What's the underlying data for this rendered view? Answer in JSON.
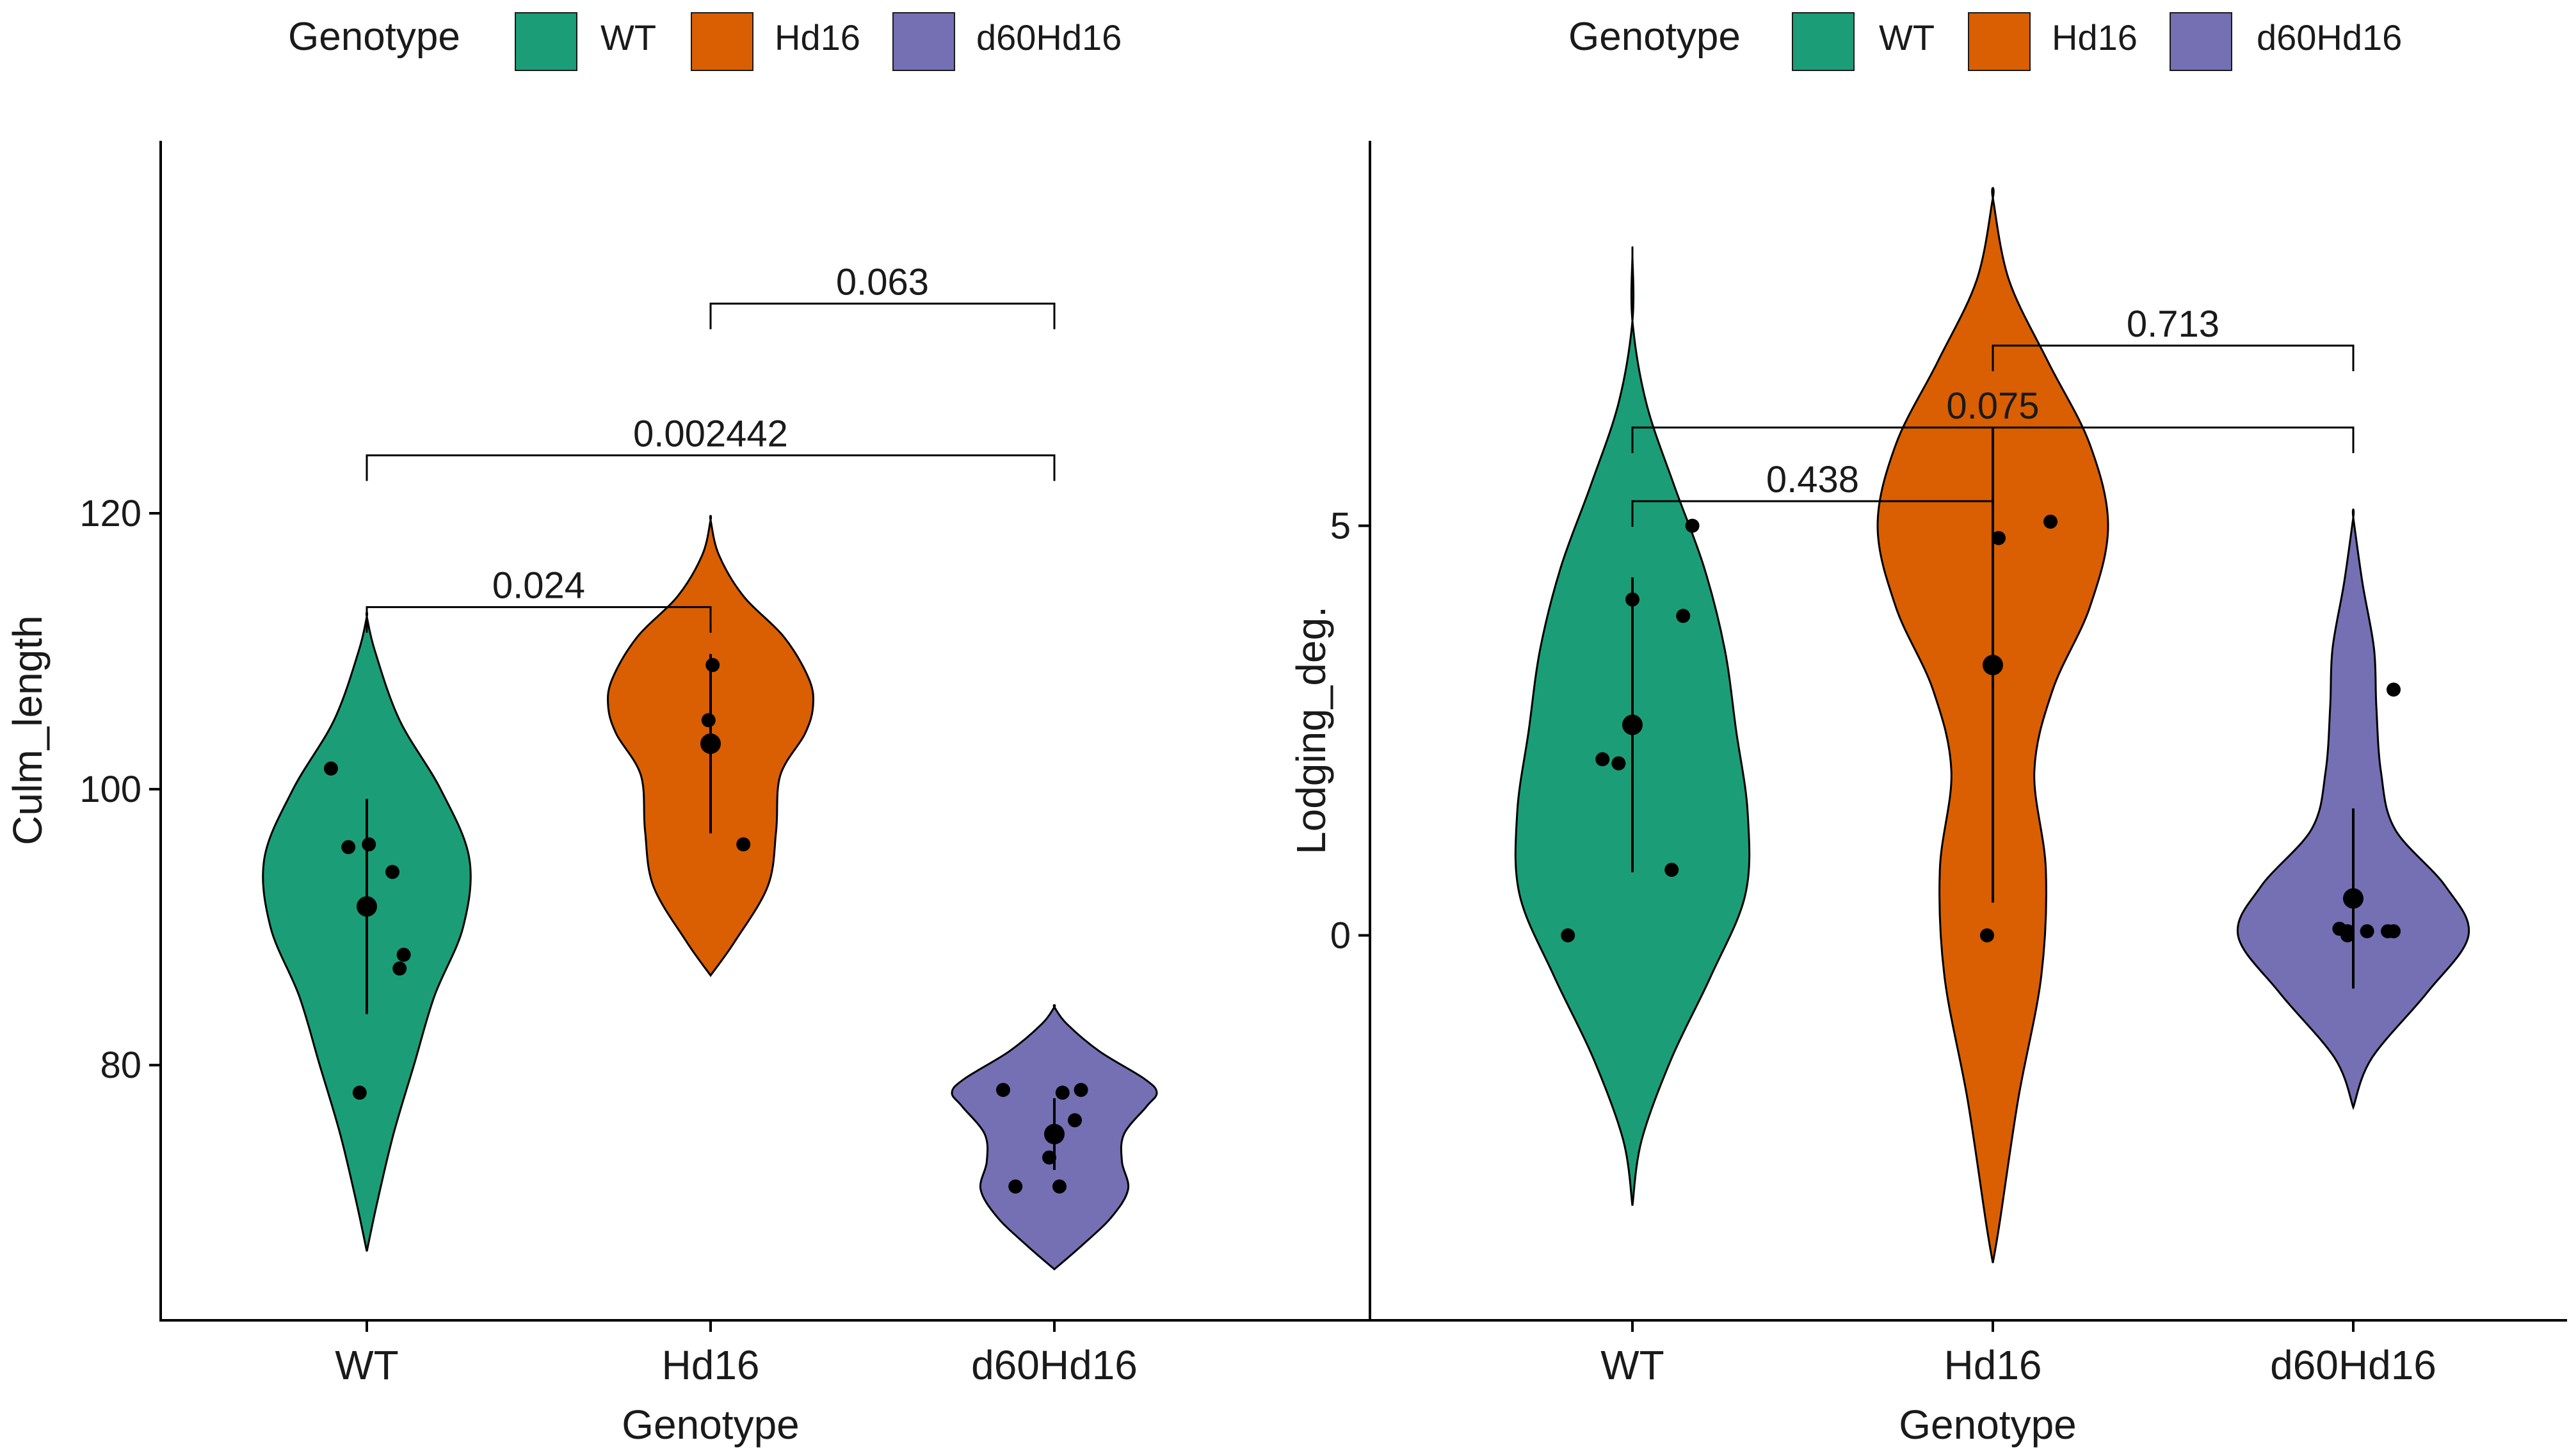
{
  "colors": {
    "WT": "#1b9e77",
    "Hd16": "#d95f02",
    "d60Hd16": "#7570b3",
    "ink": "#000000"
  },
  "chart_data": [
    {
      "type": "violin",
      "legend": {
        "title": "Genotype",
        "entries": [
          "WT",
          "Hd16",
          "d60Hd16"
        ],
        "position": "top"
      },
      "xlabel": "Genotype",
      "ylabel": "Culm_length",
      "categories": [
        "WT",
        "Hd16",
        "d60Hd16"
      ],
      "ylim": [
        61.5,
        147
      ],
      "yticks": [
        80,
        100,
        120
      ],
      "groups": [
        {
          "name": "WT",
          "mean": 91.5,
          "sd": 7.8,
          "points": [
            101.5,
            95.8,
            96.0,
            91.5,
            94.0,
            88.0,
            87.0,
            78.0
          ],
          "jitter": [
            -0.35,
            -0.18,
            0.02,
            0.0,
            0.25,
            0.36,
            0.32,
            -0.07
          ],
          "density": [
            [
              66.5,
              0.0
            ],
            [
              70,
              0.05
            ],
            [
              75,
              0.13
            ],
            [
              80,
              0.23
            ],
            [
              85,
              0.33
            ],
            [
              90,
              0.47
            ],
            [
              95,
              0.5
            ],
            [
              100,
              0.36
            ],
            [
              105,
              0.16
            ],
            [
              110,
              0.04
            ],
            [
              112.5,
              0.0
            ]
          ]
        },
        {
          "name": "Hd16",
          "mean": 103.3,
          "sd": 6.5,
          "points": [
            109.0,
            105.0,
            103.3,
            96.0
          ],
          "jitter": [
            0.02,
            -0.02,
            0.0,
            0.32
          ],
          "density": [
            [
              86.5,
              0.0
            ],
            [
              89,
              0.12
            ],
            [
              93,
              0.28
            ],
            [
              97,
              0.32
            ],
            [
              101,
              0.34
            ],
            [
              104,
              0.46
            ],
            [
              106,
              0.5
            ],
            [
              108,
              0.48
            ],
            [
              111,
              0.36
            ],
            [
              114,
              0.16
            ],
            [
              117,
              0.04
            ],
            [
              119.5,
              0.0
            ]
          ]
        },
        {
          "name": "d60Hd16",
          "mean": 75.0,
          "sd": 2.6,
          "points": [
            78.2,
            78.0,
            78.2,
            76.0,
            75.0,
            73.3,
            71.2,
            71.2
          ],
          "jitter": [
            -0.5,
            0.08,
            0.26,
            0.2,
            -0.01,
            -0.05,
            -0.38,
            0.05
          ],
          "density": [
            [
              65.2,
              0.0
            ],
            [
              67,
              0.14
            ],
            [
              69,
              0.28
            ],
            [
              71,
              0.36
            ],
            [
              73,
              0.33
            ],
            [
              75,
              0.34
            ],
            [
              77,
              0.45
            ],
            [
              78,
              0.5
            ],
            [
              79,
              0.44
            ],
            [
              81,
              0.22
            ],
            [
              83,
              0.06
            ],
            [
              84.2,
              0.0
            ]
          ]
        }
      ],
      "comparisons": [
        {
          "from": "WT",
          "to": "Hd16",
          "y": 113.2,
          "label": "0.024"
        },
        {
          "from": "WT",
          "to": "d60Hd16",
          "y": 124.2,
          "label": "0.002442"
        },
        {
          "from": "Hd16",
          "to": "d60Hd16",
          "y": 135.2,
          "label": "0.063"
        }
      ]
    },
    {
      "type": "violin",
      "legend": {
        "title": "Genotype",
        "entries": [
          "WT",
          "Hd16",
          "d60Hd16"
        ],
        "position": "top"
      },
      "xlabel": "Genotype",
      "ylabel": "Lodging_deg.",
      "categories": [
        "WT",
        "Hd16",
        "d60Hd16"
      ],
      "ylim": [
        -4.7,
        9.7
      ],
      "yticks": [
        0,
        5
      ],
      "groups": [
        {
          "name": "WT",
          "mean": 2.57,
          "sd": 1.8,
          "points": [
            5.0,
            4.1,
            3.9,
            2.57,
            2.15,
            2.1,
            0.8,
            0.0
          ],
          "jitter": [
            0.52,
            0.0,
            0.44,
            0.0,
            -0.26,
            -0.12,
            0.34,
            -0.56
          ],
          "density": [
            [
              -3.3,
              0.0
            ],
            [
              -2.5,
              0.04
            ],
            [
              -1.5,
              0.17
            ],
            [
              -0.5,
              0.34
            ],
            [
              0.5,
              0.49
            ],
            [
              1.5,
              0.5
            ],
            [
              2.5,
              0.45
            ],
            [
              3.5,
              0.4
            ],
            [
              4.5,
              0.31
            ],
            [
              5.5,
              0.18
            ],
            [
              6.5,
              0.06
            ],
            [
              7.5,
              0.0
            ],
            [
              8.3,
              0.0
            ]
          ]
        },
        {
          "name": "Hd16",
          "mean": 3.3,
          "sd": 2.9,
          "points": [
            5.05,
            4.85,
            3.3,
            0.0
          ],
          "jitter": [
            0.5,
            0.05,
            0.0,
            -0.05
          ],
          "density": [
            [
              -4.0,
              0.0
            ],
            [
              -3.5,
              0.03
            ],
            [
              -2.0,
              0.11
            ],
            [
              -0.5,
              0.21
            ],
            [
              0.8,
              0.23
            ],
            [
              2.0,
              0.18
            ],
            [
              3.0,
              0.26
            ],
            [
              4.0,
              0.42
            ],
            [
              5.0,
              0.5
            ],
            [
              6.0,
              0.42
            ],
            [
              7.0,
              0.24
            ],
            [
              8.0,
              0.07
            ],
            [
              9.0,
              0.0
            ]
          ]
        },
        {
          "name": "d60Hd16",
          "mean": 0.45,
          "sd": 1.1,
          "points": [
            3.0,
            0.45,
            0.08,
            0.05,
            0.05,
            0.05,
            0.05,
            0.0
          ],
          "jitter": [
            0.35,
            0.0,
            -0.12,
            -0.05,
            0.12,
            0.3,
            0.35,
            -0.05
          ],
          "density": [
            [
              -2.1,
              0.0
            ],
            [
              -1.5,
              0.08
            ],
            [
              -0.7,
              0.32
            ],
            [
              0.0,
              0.5
            ],
            [
              0.6,
              0.4
            ],
            [
              1.3,
              0.18
            ],
            [
              2.0,
              0.12
            ],
            [
              2.8,
              0.1
            ],
            [
              3.5,
              0.09
            ],
            [
              4.3,
              0.04
            ],
            [
              5.1,
              0.0
            ]
          ]
        }
      ],
      "comparisons": [
        {
          "from": "WT",
          "to": "Hd16",
          "y": 5.3,
          "label": "0.438"
        },
        {
          "from": "WT",
          "to": "d60Hd16",
          "y": 6.2,
          "label": "0.075"
        },
        {
          "from": "Hd16",
          "to": "d60Hd16",
          "y": 7.2,
          "label": "0.713"
        }
      ]
    }
  ]
}
